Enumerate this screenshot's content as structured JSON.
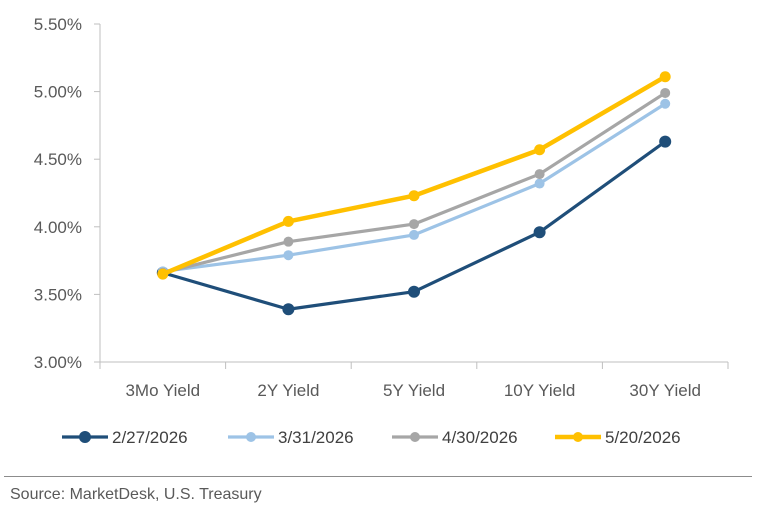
{
  "chart_data": {
    "type": "line",
    "categories": [
      "3Mo Yield",
      "2Y Yield",
      "5Y Yield",
      "10Y Yield",
      "30Y Yield"
    ],
    "ylim": [
      3.0,
      5.5
    ],
    "yticks": [
      "3.00%",
      "3.50%",
      "4.00%",
      "4.50%",
      "5.00%",
      "5.50%"
    ],
    "ytick_values": [
      3.0,
      3.5,
      4.0,
      4.5,
      5.0,
      5.5
    ],
    "grid": false,
    "legend_position": "bottom",
    "series": [
      {
        "name": "2/27/2026",
        "color": "#1f4e79",
        "values": [
          3.66,
          3.39,
          3.52,
          3.96,
          4.63
        ]
      },
      {
        "name": "3/31/2026",
        "color": "#9dc3e6",
        "values": [
          3.67,
          3.79,
          3.94,
          4.32,
          4.91
        ]
      },
      {
        "name": "4/30/2026",
        "color": "#a6a6a6",
        "values": [
          3.66,
          3.89,
          4.02,
          4.39,
          4.99
        ]
      },
      {
        "name": "5/20/2026",
        "color": "#ffc000",
        "values": [
          3.65,
          4.04,
          4.23,
          4.57,
          5.11
        ]
      }
    ]
  },
  "footer": {
    "source": "Source: MarketDesk, U.S. Treasury"
  }
}
